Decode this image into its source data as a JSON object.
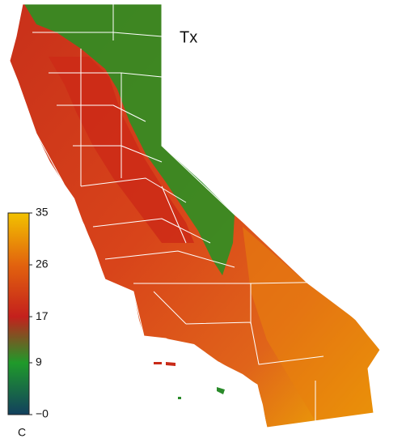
{
  "title": "Tx",
  "colorbar": {
    "lim": [
      0,
      35
    ],
    "ticks": [
      {
        "value": 0,
        "label": "−0"
      },
      9,
      17,
      26,
      35
    ],
    "colors": [
      "#12405e",
      "#1f9a2a",
      "#c4201c",
      "#e2630e",
      "#f2c200"
    ],
    "unit": "C"
  }
}
